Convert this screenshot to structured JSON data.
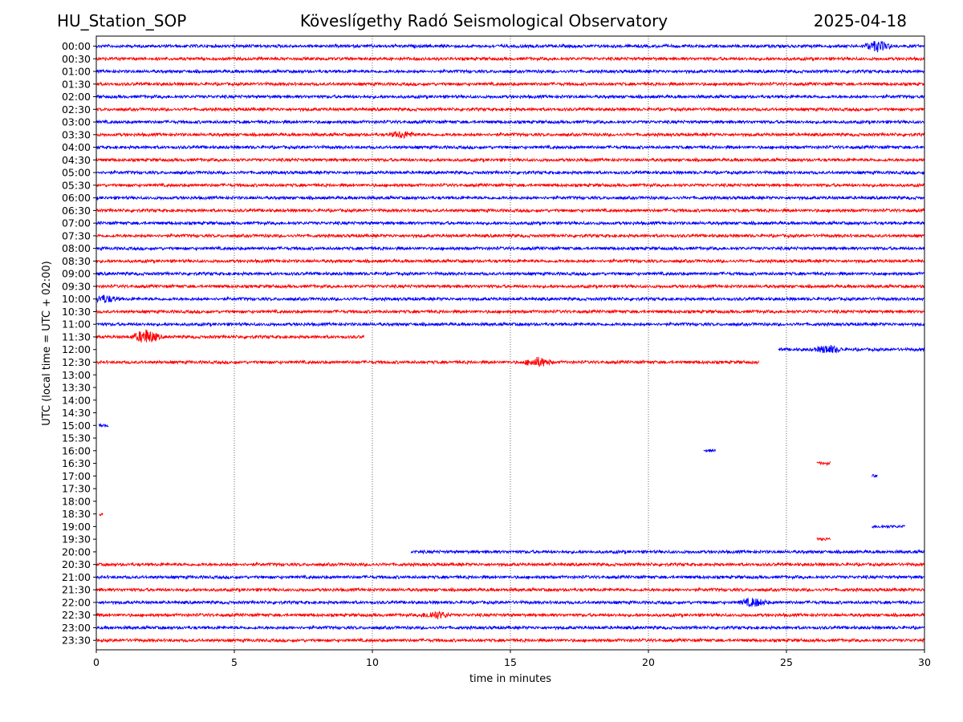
{
  "header": {
    "station": "HU_Station_SOP",
    "observatory": "Köveslígethy Radó Seismological Observatory",
    "date": "2025-04-18"
  },
  "chart_data": {
    "type": "line",
    "chart_kind": "helicorder",
    "xlabel": "time in minutes",
    "ylabel": "UTC (local time = UTC + 02:00)",
    "xlim": [
      0,
      30
    ],
    "x_ticks": [
      "0",
      "5",
      "10",
      "15",
      "20",
      "25",
      "30"
    ],
    "x_tick_values": [
      0,
      5,
      10,
      15,
      20,
      25,
      30
    ],
    "vertical_gridlines_at": [
      5,
      10,
      15,
      20,
      25
    ],
    "row_colors": [
      "#0000ff",
      "#ff0000"
    ],
    "row_labels": [
      "00:00",
      "00:30",
      "01:00",
      "01:30",
      "02:00",
      "02:30",
      "03:00",
      "03:30",
      "04:00",
      "04:30",
      "05:00",
      "05:30",
      "06:00",
      "06:30",
      "07:00",
      "07:30",
      "08:00",
      "08:30",
      "09:00",
      "09:30",
      "10:00",
      "10:30",
      "11:00",
      "11:30",
      "12:00",
      "12:30",
      "13:00",
      "13:30",
      "14:00",
      "14:30",
      "15:00",
      "15:30",
      "16:00",
      "16:30",
      "17:00",
      "17:30",
      "18:00",
      "18:30",
      "19:00",
      "19:30",
      "20:00",
      "20:30",
      "21:00",
      "21:30",
      "22:00",
      "22:30",
      "23:00",
      "23:30"
    ],
    "segments": [
      {
        "row": "00:00",
        "start": 0,
        "end": 30
      },
      {
        "row": "00:30",
        "start": 0,
        "end": 30
      },
      {
        "row": "01:00",
        "start": 0,
        "end": 30
      },
      {
        "row": "01:30",
        "start": 0,
        "end": 30
      },
      {
        "row": "02:00",
        "start": 0,
        "end": 30
      },
      {
        "row": "02:30",
        "start": 0,
        "end": 30
      },
      {
        "row": "03:00",
        "start": 0,
        "end": 30
      },
      {
        "row": "03:30",
        "start": 0,
        "end": 30
      },
      {
        "row": "04:00",
        "start": 0,
        "end": 30
      },
      {
        "row": "04:30",
        "start": 0,
        "end": 30
      },
      {
        "row": "05:00",
        "start": 0,
        "end": 30
      },
      {
        "row": "05:30",
        "start": 0,
        "end": 30
      },
      {
        "row": "06:00",
        "start": 0,
        "end": 30
      },
      {
        "row": "06:30",
        "start": 0,
        "end": 30
      },
      {
        "row": "07:00",
        "start": 0,
        "end": 30
      },
      {
        "row": "07:30",
        "start": 0,
        "end": 30
      },
      {
        "row": "08:00",
        "start": 0,
        "end": 30
      },
      {
        "row": "08:30",
        "start": 0,
        "end": 30
      },
      {
        "row": "09:00",
        "start": 0,
        "end": 30
      },
      {
        "row": "09:30",
        "start": 0,
        "end": 30
      },
      {
        "row": "10:00",
        "start": 0,
        "end": 30
      },
      {
        "row": "10:30",
        "start": 0,
        "end": 30
      },
      {
        "row": "11:00",
        "start": 0,
        "end": 30
      },
      {
        "row": "11:30",
        "start": 0,
        "end": 9.7
      },
      {
        "row": "12:00",
        "start": 24.7,
        "end": 30
      },
      {
        "row": "12:30",
        "start": 0,
        "end": 24.0
      },
      {
        "row": "15:00",
        "start": 0.1,
        "end": 0.45
      },
      {
        "row": "16:00",
        "start": 22.0,
        "end": 22.45
      },
      {
        "row": "16:30",
        "start": 26.1,
        "end": 26.6
      },
      {
        "row": "17:00",
        "start": 28.1,
        "end": 28.3
      },
      {
        "row": "18:30",
        "start": 0.1,
        "end": 0.25
      },
      {
        "row": "19:00",
        "start": 28.1,
        "end": 29.3
      },
      {
        "row": "19:30",
        "start": 26.1,
        "end": 26.6
      },
      {
        "row": "20:00",
        "start": 11.4,
        "end": 30
      },
      {
        "row": "20:30",
        "start": 0,
        "end": 30
      },
      {
        "row": "21:00",
        "start": 0,
        "end": 30
      },
      {
        "row": "21:30",
        "start": 0,
        "end": 30
      },
      {
        "row": "22:00",
        "start": 0,
        "end": 30
      },
      {
        "row": "22:30",
        "start": 0,
        "end": 30
      },
      {
        "row": "23:00",
        "start": 0,
        "end": 30
      },
      {
        "row": "23:30",
        "start": 0,
        "end": 30
      }
    ],
    "events": [
      {
        "row": "00:00",
        "at": 28.3,
        "amplitude": 1.0
      },
      {
        "row": "03:30",
        "at": 11.1,
        "amplitude": 0.6
      },
      {
        "row": "10:00",
        "at": 0.3,
        "amplitude": 0.7
      },
      {
        "row": "11:30",
        "at": 1.8,
        "amplitude": 1.4
      },
      {
        "row": "12:00",
        "at": 26.5,
        "amplitude": 0.8
      },
      {
        "row": "12:30",
        "at": 16.0,
        "amplitude": 0.9
      },
      {
        "row": "22:00",
        "at": 23.8,
        "amplitude": 0.8
      },
      {
        "row": "22:30",
        "at": 12.3,
        "amplitude": 0.7
      }
    ]
  }
}
